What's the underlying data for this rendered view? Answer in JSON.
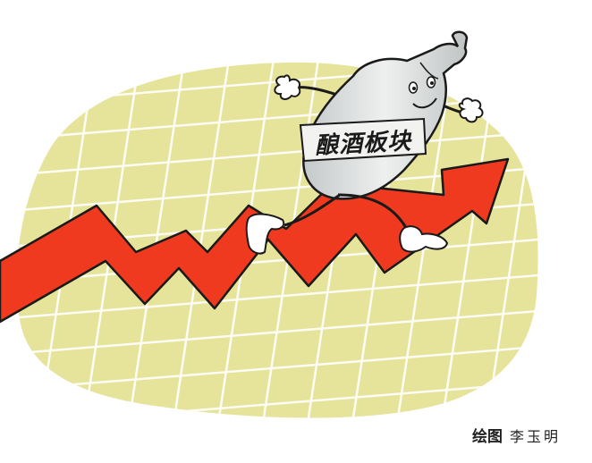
{
  "badge": {
    "text": "酿酒板块"
  },
  "credit": {
    "label": "绘图",
    "artist": "李玉明"
  },
  "colors": {
    "blob": "#e6e39a",
    "grid": "#ffffff",
    "arrow": "#ef3a1f",
    "outline": "#1a1a1a",
    "bottle": "#d8dcdc"
  }
}
